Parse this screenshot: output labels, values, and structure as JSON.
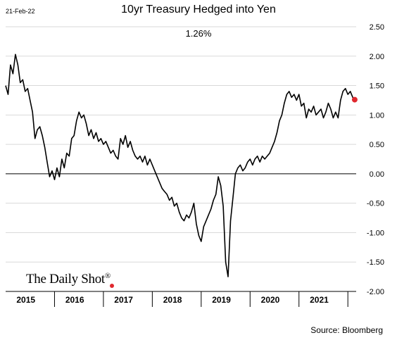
{
  "header": {
    "date_stamp": "21-Feb-22",
    "title": "10yr Treasury Hedged into Yen",
    "latest_value": "1.26%"
  },
  "footer": {
    "source": "Source: Bloomberg",
    "brand": "The Daily Shot",
    "brand_mark": "®"
  },
  "colors": {
    "line": "#000000",
    "marker": "#e0282e",
    "grid": "#d9d9d9",
    "zero_line": "#000000"
  },
  "chart_data": {
    "type": "line",
    "title": "10yr Treasury Hedged into Yen",
    "xlabel": "",
    "ylabel": "",
    "ylim": [
      -2.0,
      2.5
    ],
    "xlim": [
      2015.0,
      2022.17
    ],
    "y_ticks": [
      2.5,
      2.0,
      1.5,
      1.0,
      0.5,
      0.0,
      -0.5,
      -1.0,
      -1.5,
      -2.0
    ],
    "y_tick_labels": [
      "2.50",
      "2.00",
      "1.50",
      "1.00",
      "0.50",
      "0.00",
      "-0.50",
      "-1.00",
      "-1.50",
      "-2.00"
    ],
    "x_tick_labels": [
      "2015",
      "2016",
      "2017",
      "2018",
      "2019",
      "2020",
      "2021"
    ],
    "x_tick_positions": [
      2015,
      2016,
      2017,
      2018,
      2019,
      2020,
      2021
    ],
    "grid": "horizontal",
    "latest_marker": {
      "x": 2022.14,
      "y": 1.26
    },
    "series": [
      {
        "x": [
          2015.0,
          2015.05,
          2015.1,
          2015.15,
          2015.2,
          2015.25,
          2015.3,
          2015.35,
          2015.4,
          2015.45,
          2015.5,
          2015.55,
          2015.6,
          2015.65,
          2015.7,
          2015.75,
          2015.8,
          2015.85,
          2015.9,
          2015.95,
          2016.0,
          2016.05,
          2016.1,
          2016.15,
          2016.2,
          2016.25,
          2016.3,
          2016.35,
          2016.4,
          2016.45,
          2016.5,
          2016.55,
          2016.6,
          2016.65,
          2016.7,
          2016.75,
          2016.8,
          2016.85,
          2016.9,
          2016.95,
          2017.0,
          2017.05,
          2017.1,
          2017.15,
          2017.2,
          2017.25,
          2017.3,
          2017.35,
          2017.4,
          2017.45,
          2017.5,
          2017.55,
          2017.6,
          2017.65,
          2017.7,
          2017.75,
          2017.8,
          2017.85,
          2017.9,
          2017.95,
          2018.0,
          2018.05,
          2018.1,
          2018.15,
          2018.2,
          2018.25,
          2018.3,
          2018.35,
          2018.4,
          2018.45,
          2018.5,
          2018.55,
          2018.6,
          2018.65,
          2018.7,
          2018.75,
          2018.8,
          2018.85,
          2018.9,
          2018.95,
          2019.0,
          2019.05,
          2019.1,
          2019.15,
          2019.2,
          2019.25,
          2019.3,
          2019.35,
          2019.4,
          2019.45,
          2019.5,
          2019.55,
          2019.6,
          2019.65,
          2019.7,
          2019.75,
          2019.8,
          2019.85,
          2019.9,
          2019.95,
          2020.0,
          2020.05,
          2020.1,
          2020.15,
          2020.2,
          2020.25,
          2020.3,
          2020.35,
          2020.4,
          2020.45,
          2020.5,
          2020.55,
          2020.6,
          2020.65,
          2020.7,
          2020.75,
          2020.8,
          2020.85,
          2020.9,
          2020.95,
          2021.0,
          2021.05,
          2021.1,
          2021.15,
          2021.2,
          2021.25,
          2021.3,
          2021.35,
          2021.4,
          2021.45,
          2021.5,
          2021.55,
          2021.6,
          2021.65,
          2021.7,
          2021.75,
          2021.8,
          2021.85,
          2021.9,
          2021.95,
          2022.0,
          2022.05,
          2022.1,
          2022.14
        ],
        "values": [
          1.5,
          1.35,
          1.85,
          1.7,
          2.03,
          1.85,
          1.55,
          1.6,
          1.4,
          1.45,
          1.25,
          1.05,
          0.6,
          0.75,
          0.8,
          0.65,
          0.45,
          0.2,
          -0.05,
          0.05,
          -0.1,
          0.1,
          -0.05,
          0.25,
          0.1,
          0.35,
          0.3,
          0.6,
          0.65,
          0.9,
          1.05,
          0.95,
          1.0,
          0.85,
          0.65,
          0.75,
          0.6,
          0.7,
          0.55,
          0.6,
          0.5,
          0.55,
          0.45,
          0.35,
          0.4,
          0.3,
          0.25,
          0.6,
          0.5,
          0.65,
          0.45,
          0.55,
          0.4,
          0.3,
          0.25,
          0.3,
          0.2,
          0.3,
          0.15,
          0.25,
          0.15,
          0.05,
          -0.05,
          -0.15,
          -0.25,
          -0.3,
          -0.35,
          -0.45,
          -0.4,
          -0.55,
          -0.5,
          -0.65,
          -0.75,
          -0.8,
          -0.7,
          -0.75,
          -0.65,
          -0.5,
          -0.85,
          -1.05,
          -1.15,
          -0.9,
          -0.8,
          -0.7,
          -0.6,
          -0.45,
          -0.35,
          -0.05,
          -0.2,
          -0.55,
          -1.5,
          -1.75,
          -0.8,
          -0.4,
          0.0,
          0.1,
          0.15,
          0.05,
          0.1,
          0.2,
          0.25,
          0.15,
          0.25,
          0.3,
          0.2,
          0.3,
          0.25,
          0.3,
          0.35,
          0.45,
          0.55,
          0.7,
          0.9,
          1.0,
          1.2,
          1.35,
          1.4,
          1.3,
          1.35,
          1.25,
          1.35,
          1.15,
          1.2,
          0.95,
          1.1,
          1.05,
          1.15,
          1.0,
          1.05,
          1.1,
          0.95,
          1.05,
          1.2,
          1.1,
          0.95,
          1.05,
          0.95,
          1.25,
          1.4,
          1.45,
          1.35,
          1.4,
          1.3,
          1.26
        ]
      }
    ]
  }
}
